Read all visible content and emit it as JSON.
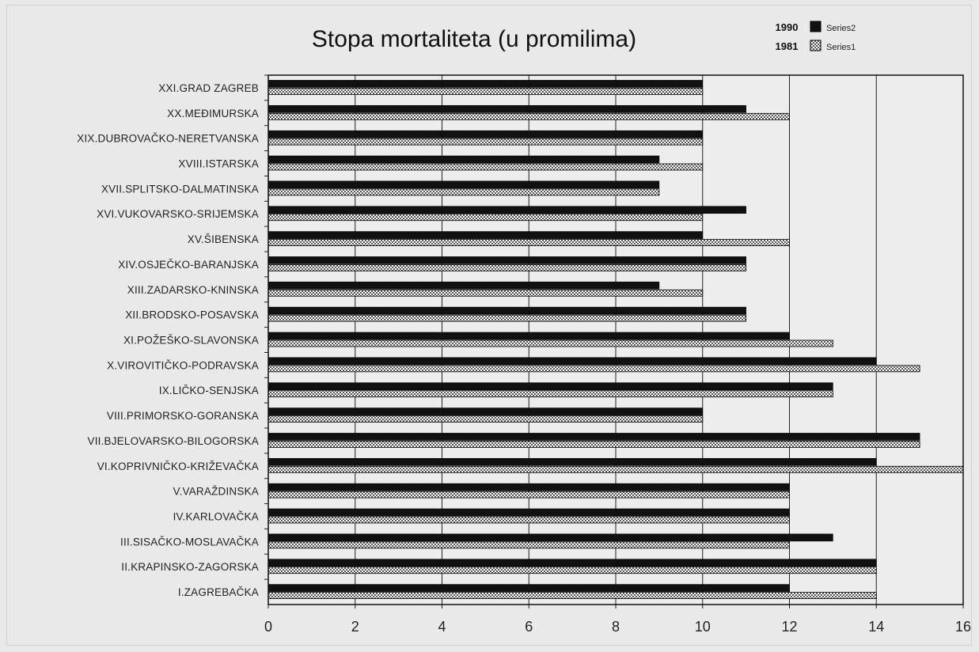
{
  "chart_data": {
    "type": "bar",
    "orientation": "horizontal",
    "title": "Stopa mortaliteta (u promilima)",
    "xlabel": "",
    "ylabel": "",
    "xlim": [
      0,
      16
    ],
    "ticks": [
      "0",
      "2",
      "4",
      "6",
      "8",
      "10",
      "12",
      "14",
      "16"
    ],
    "grid": "vertical major gridlines",
    "legend_position": "top-right",
    "categories": [
      "XXI.GRAD ZAGREB",
      "XX.MEĐIMURSKA",
      "XIX.DUBROVAČKO-NERETVANSKA",
      "XVIII.ISTARSKA",
      "XVII.SPLITSKO-DALMATINSKA",
      "XVI.VUKOVARSKO-SRIJEMSKA",
      "XV.ŠIBENSKA",
      "XIV.OSJEČKO-BARANJSKA",
      "XIII.ZADARSKO-KNINSKA",
      "XII.BRODSKO-POSAVSKA",
      "XI.POŽEŠKO-SLAVONSKA",
      "X.VIROVITIČKO-PODRAVSKA",
      "IX.LIČKO-SENJSKA",
      "VIII.PRIMORSKO-GORANSKA",
      "VII.BJELOVARSKO-BILOGORSKA",
      "VI.KOPRIVNIČKO-KRIŽEVAČKA",
      "V.VARAŽDINSKA",
      "IV.KARLOVAČKA",
      "III.SISAČKO-MOSLAVAČKA",
      "II.KRAPINSKO-ZAGORSKA",
      "I.ZAGREBAČKA"
    ],
    "series": [
      {
        "name": "Series2",
        "legend_year": "1990",
        "color": "#111111",
        "pattern": "solid",
        "values": [
          10,
          11,
          10,
          9,
          9,
          11,
          10,
          11,
          9,
          11,
          12,
          14,
          13,
          10,
          15,
          14,
          12,
          12,
          13,
          14,
          12
        ]
      },
      {
        "name": "Series1",
        "legend_year": "1981",
        "color": "#ffffff",
        "pattern": "checkered",
        "values": [
          10,
          12,
          10,
          10,
          9,
          10,
          12,
          11,
          10,
          11,
          13,
          15,
          13,
          10,
          15,
          16,
          12,
          12,
          12,
          14,
          14
        ]
      }
    ]
  }
}
